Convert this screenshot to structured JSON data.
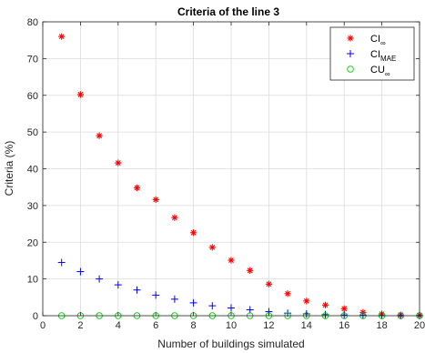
{
  "chart_data": {
    "type": "scatter",
    "title": "Criteria of the line 3",
    "xlabel": "Number of buildings simulated",
    "ylabel": "Criteria (%)",
    "xlim": [
      0,
      20
    ],
    "ylim": [
      0,
      80
    ],
    "xticks": [
      "0",
      "2",
      "4",
      "6",
      "8",
      "10",
      "12",
      "14",
      "16",
      "18",
      "20"
    ],
    "yticks": [
      "0",
      "10",
      "20",
      "30",
      "40",
      "50",
      "60",
      "70",
      "80"
    ],
    "grid": true,
    "legend_position": "top-right",
    "x": [
      1,
      2,
      3,
      4,
      5,
      6,
      7,
      8,
      9,
      10,
      11,
      12,
      13,
      14,
      15,
      16,
      17,
      18,
      19,
      20
    ],
    "series": [
      {
        "key": "ci_inf",
        "legend_main": "CI",
        "legend_sub": "∞",
        "marker": "asterisk",
        "color": "#ff0000",
        "values": [
          76.0,
          60.2,
          49.0,
          41.6,
          34.8,
          31.6,
          26.7,
          22.6,
          18.6,
          15.1,
          12.3,
          8.6,
          6.0,
          4.0,
          2.9,
          1.9,
          0.9,
          0.5,
          0.2,
          0.1
        ]
      },
      {
        "key": "ci_mae",
        "legend_main": "CI",
        "legend_sub": "MAE",
        "marker": "plus",
        "color": "#0000ff",
        "values": [
          14.5,
          12.0,
          10.0,
          8.4,
          7.0,
          5.6,
          4.5,
          3.5,
          2.7,
          2.1,
          1.6,
          1.1,
          0.7,
          0.5,
          0.3,
          0.2,
          0.1,
          0.05,
          0.02,
          0.01
        ]
      },
      {
        "key": "cu_inf",
        "legend_main": "CU",
        "legend_sub": "∞",
        "marker": "circle",
        "color": "#00cc00",
        "values": [
          0,
          0,
          0,
          0,
          0,
          0,
          0,
          0,
          0,
          0,
          0,
          0,
          0,
          0,
          0,
          0,
          0,
          0,
          0,
          0
        ]
      }
    ]
  }
}
